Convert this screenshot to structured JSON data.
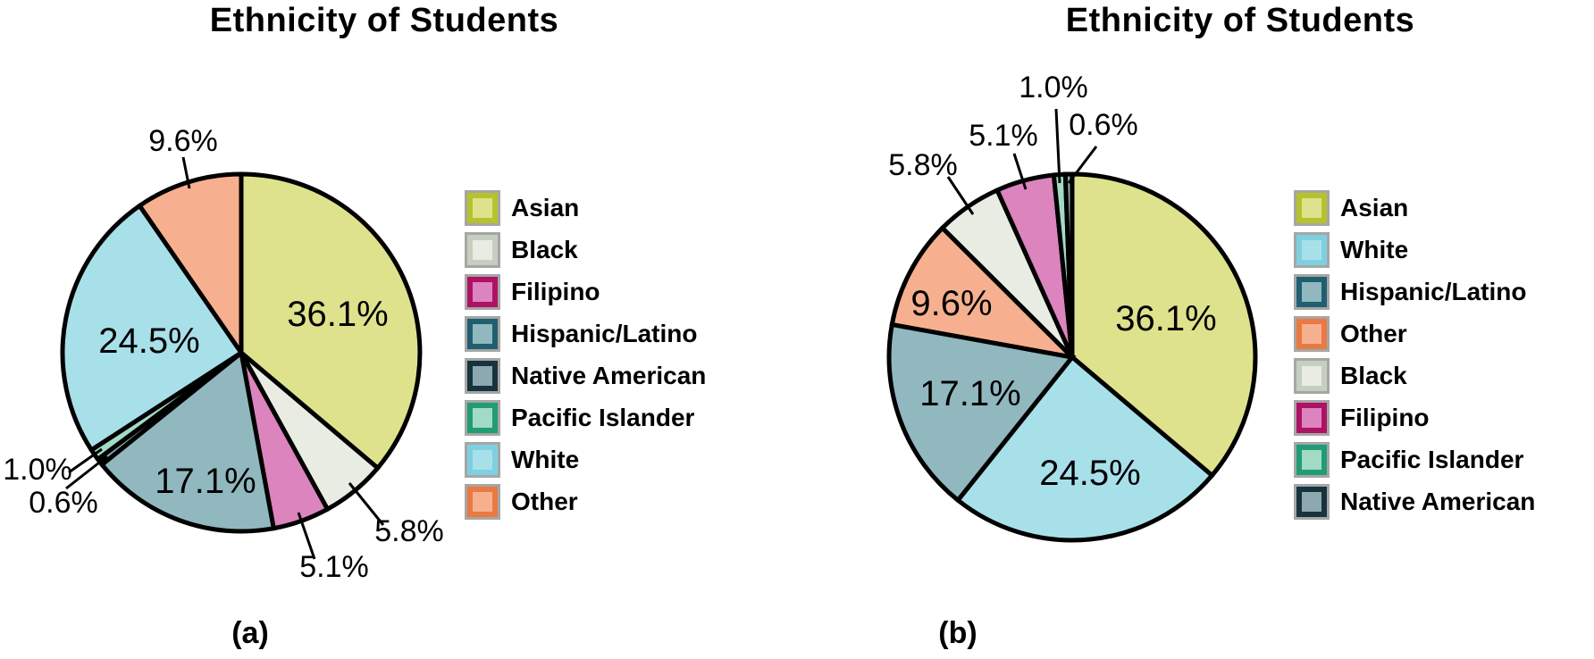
{
  "charts": [
    {
      "id": "a",
      "title": "Ethnicity of Students",
      "caption": "(a)",
      "slices": [
        {
          "name": "Asian",
          "pct": 36.1,
          "label": "36.1%"
        },
        {
          "name": "Black",
          "pct": 5.8,
          "label": "5.8%"
        },
        {
          "name": "Filipino",
          "pct": 5.1,
          "label": "5.1%"
        },
        {
          "name": "Hispanic/Latino",
          "pct": 17.1,
          "label": "17.1%"
        },
        {
          "name": "Native American",
          "pct": 0.6,
          "label": "0.6%"
        },
        {
          "name": "Pacific Islander",
          "pct": 1.0,
          "label": "1.0%"
        },
        {
          "name": "White",
          "pct": 24.5,
          "label": "24.5%"
        },
        {
          "name": "Other",
          "pct": 9.6,
          "label": "9.6%"
        }
      ],
      "legend": [
        "Asian",
        "Black",
        "Filipino",
        "Hispanic/Latino",
        "Native American",
        "Pacific Islander",
        "White",
        "Other"
      ]
    },
    {
      "id": "b",
      "title": "Ethnicity of Students",
      "caption": "(b)",
      "slices": [
        {
          "name": "Asian",
          "pct": 36.1,
          "label": "36.1%"
        },
        {
          "name": "White",
          "pct": 24.5,
          "label": "24.5%"
        },
        {
          "name": "Hispanic/Latino",
          "pct": 17.1,
          "label": "17.1%"
        },
        {
          "name": "Other",
          "pct": 9.6,
          "label": "9.6%"
        },
        {
          "name": "Black",
          "pct": 5.8,
          "label": "5.8%"
        },
        {
          "name": "Filipino",
          "pct": 5.1,
          "label": "5.1%"
        },
        {
          "name": "Pacific Islander",
          "pct": 1.0,
          "label": "1.0%"
        },
        {
          "name": "Native American",
          "pct": 0.6,
          "label": "0.6%"
        }
      ],
      "legend": [
        "Asian",
        "White",
        "Hispanic/Latino",
        "Other",
        "Black",
        "Filipino",
        "Pacific Islander",
        "Native American"
      ]
    }
  ],
  "palette": {
    "Asian": {
      "fill": "#dee28c",
      "edge": "#b5c32d"
    },
    "Black": {
      "fill": "#e9ece2",
      "edge": "#c6cec0"
    },
    "Filipino": {
      "fill": "#dc84be",
      "edge": "#ae1264"
    },
    "Hispanic/Latino": {
      "fill": "#91b7bf",
      "edge": "#1f5f70"
    },
    "Native American": {
      "fill": "#8da8b0",
      "edge": "#17333d"
    },
    "Pacific Islander": {
      "fill": "#a2dbc5",
      "edge": "#219c77"
    },
    "White": {
      "fill": "#a8e0ea",
      "edge": "#7ed0e0"
    },
    "Other": {
      "fill": "#f6b08f",
      "edge": "#e87a42"
    }
  },
  "stroke_color": "#000000",
  "chart_data": [
    {
      "type": "pie",
      "subfigure": "(a)",
      "title": "Ethnicity of Students",
      "labels": [
        "Asian",
        "Black",
        "Filipino",
        "Hispanic/Latino",
        "Native American",
        "Pacific Islander",
        "White",
        "Other"
      ],
      "values": [
        36.1,
        5.8,
        5.1,
        17.1,
        0.6,
        1.0,
        24.5,
        9.6
      ],
      "unit": "%",
      "data_labels": [
        "36.1%",
        "5.8%",
        "5.1%",
        "17.1%",
        "0.6%",
        "1.0%",
        "24.5%",
        "9.6%"
      ],
      "start_angle": "12 o'clock",
      "direction": "clockwise",
      "legend_position": "right",
      "note": "slices in alphabetical order; small slices labeled outside with leader lines"
    },
    {
      "type": "pie",
      "subfigure": "(b)",
      "title": "Ethnicity of Students",
      "labels": [
        "Asian",
        "White",
        "Hispanic/Latino",
        "Other",
        "Black",
        "Filipino",
        "Pacific Islander",
        "Native American"
      ],
      "values": [
        36.1,
        24.5,
        17.1,
        9.6,
        5.8,
        5.1,
        1.0,
        0.6
      ],
      "unit": "%",
      "data_labels": [
        "36.1%",
        "24.5%",
        "17.1%",
        "9.6%",
        "5.8%",
        "5.1%",
        "1.0%",
        "0.6%"
      ],
      "start_angle": "12 o'clock",
      "direction": "clockwise",
      "legend_position": "right",
      "note": "slices ordered largest to smallest; small slices labeled outside with leader lines"
    }
  ]
}
